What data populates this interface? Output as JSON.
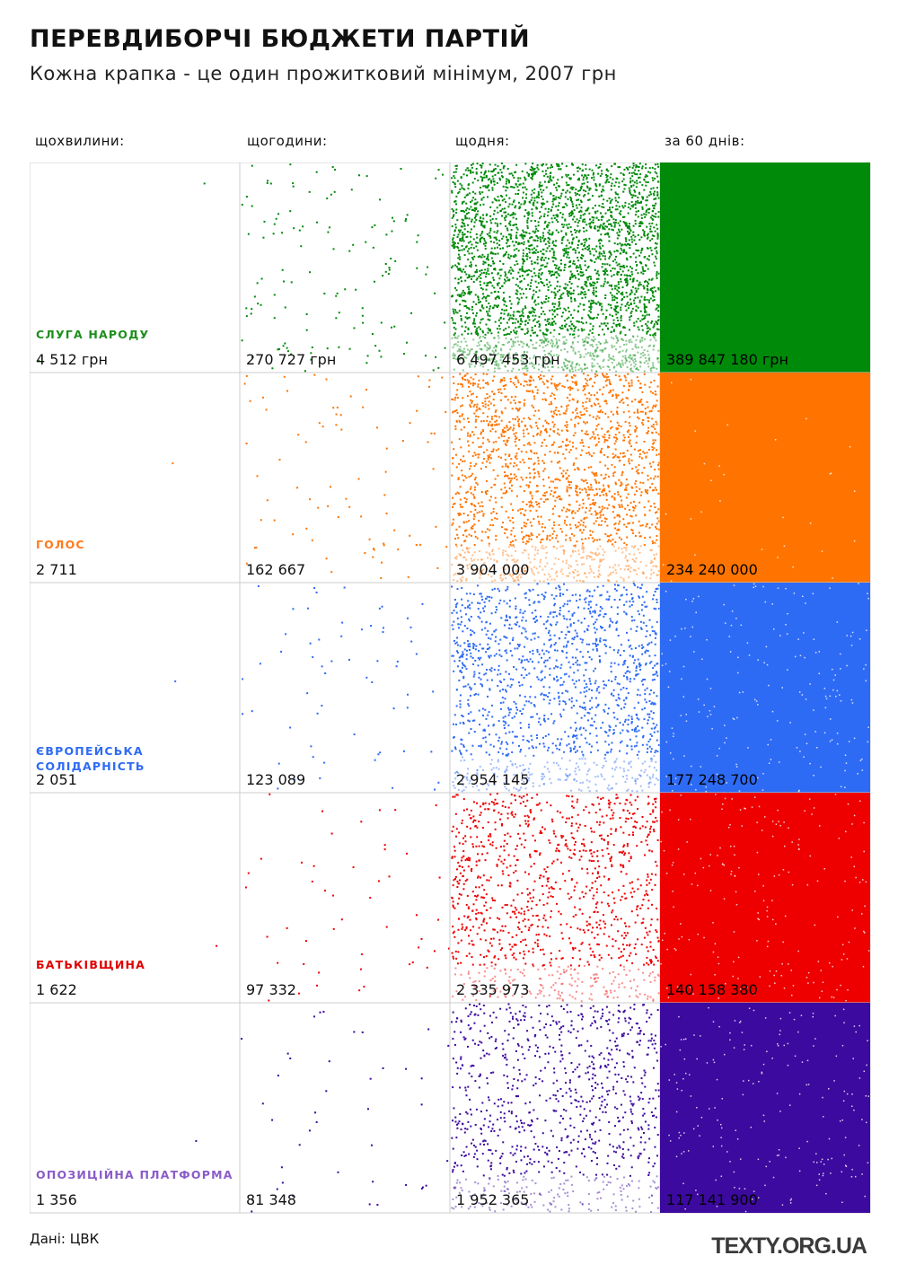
{
  "title": "ПЕРЕВДИБОРЧІ БЮДЖЕТИ ПАРТІЙ",
  "subtitle": "Кожна крапка - це один прожитковий мінімум, 2007 грн",
  "source": "Дані: ЦВК",
  "logo": "TEXTY.ORG.UA",
  "chart_data": {
    "type": "dot-grid",
    "dot_value": 2007,
    "columns": [
      "щохвилини:",
      "щогодини:",
      "щодня:",
      "за 60 днів:"
    ],
    "series": [
      {
        "name": "СЛУГА НАРОДУ",
        "color": "#008a0a",
        "label_color": "#1d8f1d",
        "values": [
          4512,
          270727,
          6497453,
          389847180
        ],
        "labels": [
          "4 512 грн",
          "270 727 грн",
          "6 497 453 грн",
          "389 847 180 грн"
        ]
      },
      {
        "name": "ГОЛОС",
        "color": "#ff7400",
        "label_color": "#ff7a1c",
        "values": [
          2711,
          162667,
          3904000,
          234240000
        ],
        "labels": [
          "2 711",
          "162 667",
          "3 904 000",
          "234 240 000"
        ]
      },
      {
        "name": "ЄВРОПЕЙСЬКА СОЛІДАРНІСТЬ",
        "color": "#2e6bf5",
        "label_color": "#2e6bf5",
        "values": [
          2051,
          123089,
          2954145,
          177248700
        ],
        "labels": [
          "2 051",
          "123 089",
          "2 954 145",
          "177 248 700"
        ]
      },
      {
        "name": "БАТЬКІВЩИНА",
        "color": "#ee0000",
        "label_color": "#e00000",
        "values": [
          1622,
          97332,
          2335973,
          140158380
        ],
        "labels": [
          "1 622",
          "97 332",
          "2 335 973",
          "140 158 380"
        ]
      },
      {
        "name": "ОПОЗИЦІЙНА ПЛАТФОРМА",
        "color": "#3c0a9e",
        "label_color": "#8a5cc8",
        "values": [
          1356,
          81348,
          1952365,
          117141900
        ],
        "labels": [
          "1 356",
          "81 348",
          "1 952 365",
          "117 141 900"
        ]
      }
    ]
  }
}
